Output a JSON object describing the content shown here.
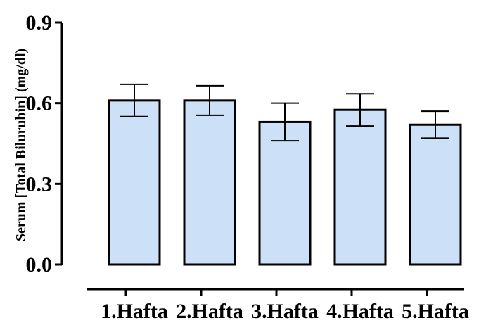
{
  "chart_data": {
    "type": "bar",
    "categories": [
      "1.Hafta",
      "2.Hafta",
      "3.Hafta",
      "4.Hafta",
      "5.Hafta"
    ],
    "values": [
      0.61,
      0.61,
      0.53,
      0.575,
      0.52
    ],
    "error": [
      0.06,
      0.055,
      0.07,
      0.06,
      0.05
    ],
    "ylabel": "Serum [Total Bilurubin] (mg/dl)",
    "ylim": [
      0.0,
      0.9
    ],
    "yticks": [
      "0.0",
      "0.3",
      "0.6",
      "0.9"
    ],
    "grid": false,
    "colors": {
      "bar_fill": "#cce0f7",
      "bar_stroke": "#000000"
    }
  }
}
